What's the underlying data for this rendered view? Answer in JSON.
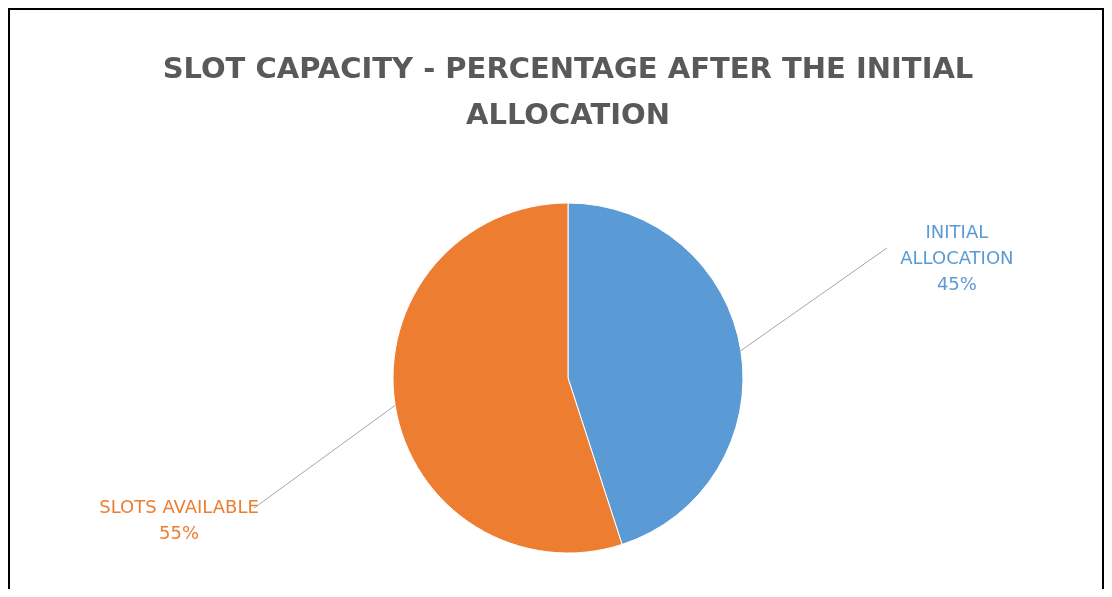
{
  "chart_data": {
    "type": "pie",
    "title": "SLOT CAPACITY - PERCENTAGE AFTER THE INITIAL ALLOCATION",
    "categories": [
      "INITIAL ALLOCATION",
      "SLOTS AVAILABLE"
    ],
    "values": [
      45,
      55
    ],
    "colors": [
      "#5b9bd5",
      "#ed7d31"
    ],
    "value_labels": [
      "45%",
      "55%"
    ],
    "legend": false
  }
}
